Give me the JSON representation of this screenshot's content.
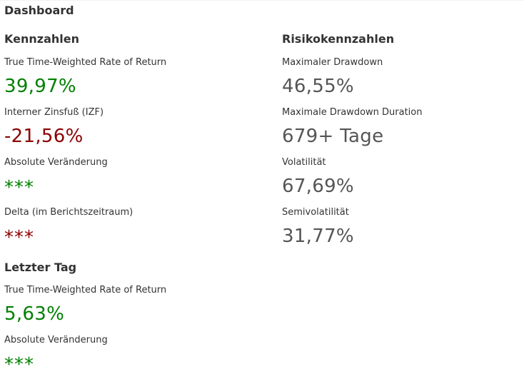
{
  "dashboard_title": "Dashboard",
  "kennzahlen": {
    "title": "Kennzahlen",
    "items": [
      {
        "label": "True Time-Weighted Rate of Return",
        "value": "39,97%"
      },
      {
        "label": "Interner Zinsfuß (IZF)",
        "value": "-21,56%"
      },
      {
        "label": "Absolute Veränderung",
        "value": "***"
      },
      {
        "label": "Delta (im Berichtszeitraum)",
        "value": "***"
      }
    ]
  },
  "letzter_tag": {
    "title": "Letzter Tag",
    "items": [
      {
        "label": "True Time-Weighted Rate of Return",
        "value": "5,63%"
      },
      {
        "label": "Absolute Veränderung",
        "value": "***"
      }
    ]
  },
  "risikokennzahlen": {
    "title": "Risikokennzahlen",
    "items": [
      {
        "label": "Maximaler Drawdown",
        "value": "46,55%"
      },
      {
        "label": "Maximale Drawdown Duration",
        "value": "679+ Tage"
      },
      {
        "label": "Volatilität",
        "value": "67,69%"
      },
      {
        "label": "Semivolatilität",
        "value": "31,77%"
      }
    ]
  },
  "colors": {
    "positive": "#008000",
    "negative": "#8b0000",
    "neutral": "#555555"
  }
}
